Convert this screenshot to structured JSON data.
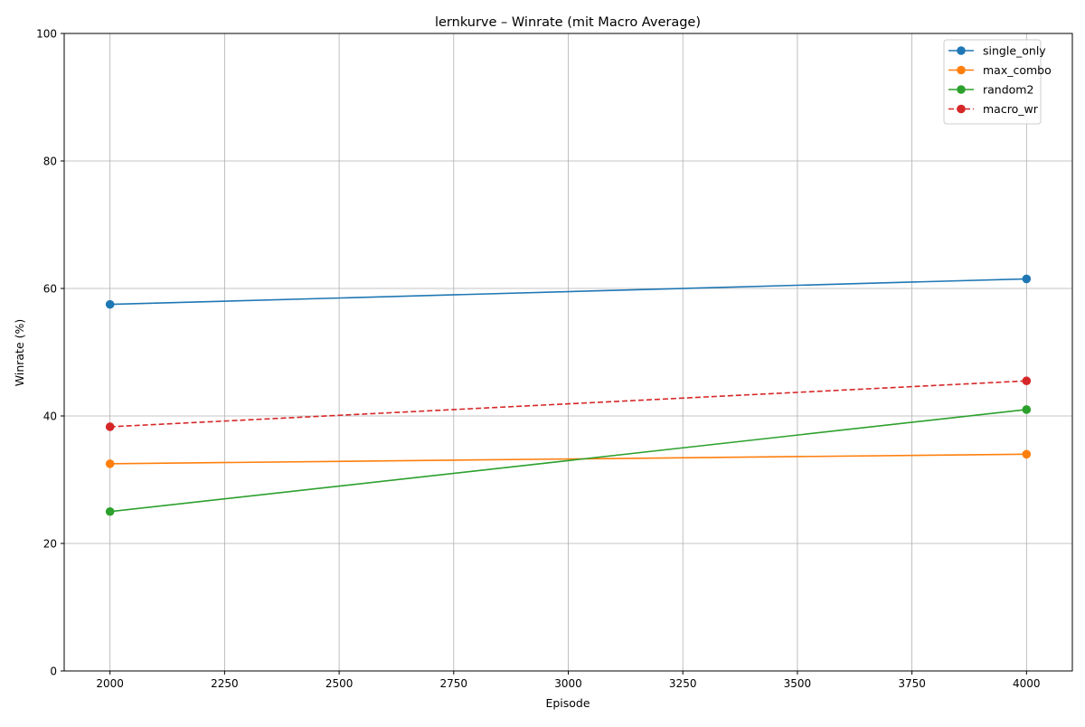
{
  "chart_data": {
    "type": "line",
    "title": "lernkurve – Winrate (mit Macro Average)",
    "xlabel": "Episode",
    "ylabel": "Winrate (%)",
    "xlim": [
      1900,
      4100
    ],
    "ylim": [
      0,
      100
    ],
    "x_ticks": [
      2000,
      2250,
      2500,
      2750,
      3000,
      3250,
      3500,
      3750,
      4000
    ],
    "y_ticks": [
      0,
      20,
      40,
      60,
      80,
      100
    ],
    "grid": true,
    "legend_position": "top-right",
    "x": [
      2000,
      4000
    ],
    "series": [
      {
        "name": "single_only",
        "values": [
          57.5,
          61.5
        ],
        "color": "#1f77b4",
        "dashed": false
      },
      {
        "name": "max_combo",
        "values": [
          32.5,
          34.0
        ],
        "color": "#ff7f0e",
        "dashed": false
      },
      {
        "name": "random2",
        "values": [
          25.0,
          41.0
        ],
        "color": "#2ca02c",
        "dashed": false
      },
      {
        "name": "macro_wr",
        "values": [
          38.3,
          45.5
        ],
        "color": "#d62728",
        "dashed": true
      }
    ]
  }
}
